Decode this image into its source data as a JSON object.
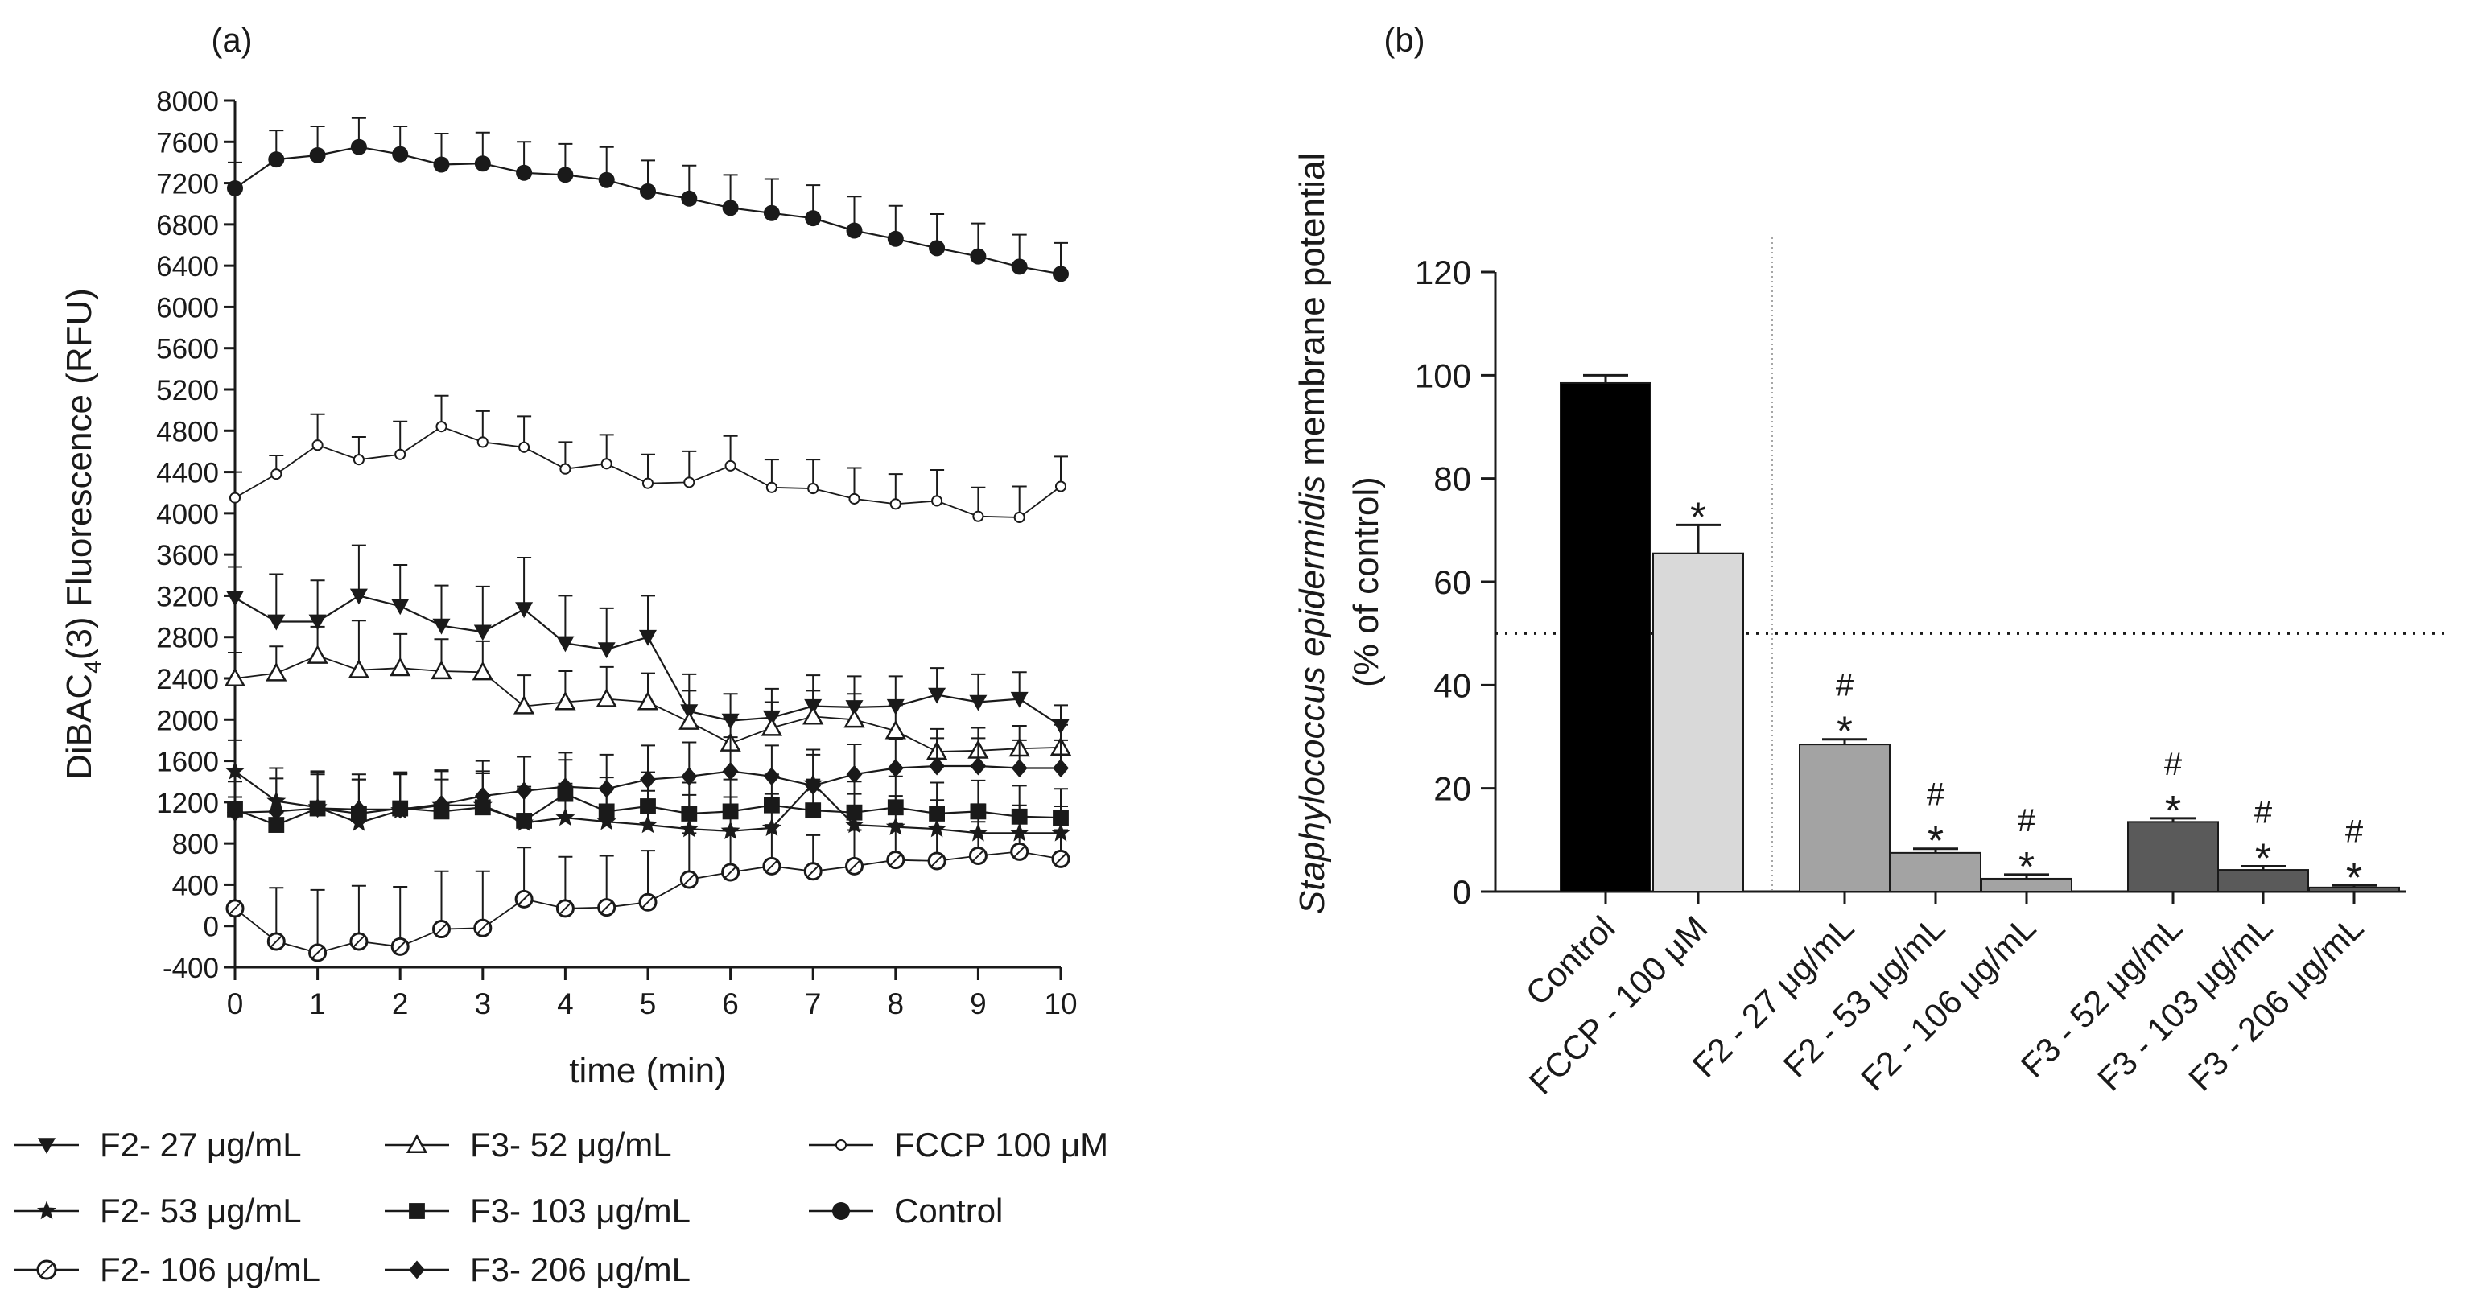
{
  "colors": {
    "ink": "#1a1a1a",
    "control_bar": "#000000",
    "fccp_bar": "#d9d9d9",
    "f2_bar": "#a3a3a3",
    "f3_bar": "#5a5a5a"
  },
  "chart_data": [
    {
      "panel_label": "(a)",
      "type": "line",
      "title": "",
      "xlabel": "time (min)",
      "ylabel_parts": {
        "pre": "DiBAC",
        "sub": "4",
        "post": "(3) Fluorescence  (RFU)"
      },
      "xlim": [
        0,
        10
      ],
      "ylim": [
        -400,
        8000
      ],
      "xticks": [
        0,
        1,
        2,
        3,
        4,
        5,
        6,
        7,
        8,
        9,
        10
      ],
      "xtick_labels": [
        "0",
        "1",
        "2",
        "3",
        "4",
        "5",
        "6",
        "7",
        "8",
        "9",
        "10"
      ],
      "yticks": [
        -400,
        0,
        400,
        800,
        1200,
        1600,
        2000,
        2400,
        2800,
        3200,
        3600,
        4000,
        4400,
        4800,
        5200,
        5600,
        6000,
        6400,
        6800,
        7200,
        7600,
        8000
      ],
      "ytick_labels": [
        "-400",
        "0",
        "400",
        "800",
        "1200",
        "1600",
        "2000",
        "2400",
        "2800",
        "3200",
        "3600",
        "4000",
        "4400",
        "4800",
        "5200",
        "5600",
        "6000",
        "6400",
        "6800",
        "7200",
        "7600",
        "8000"
      ],
      "x": [
        0,
        0.5,
        1,
        1.5,
        2,
        2.5,
        3,
        3.5,
        4,
        4.5,
        5,
        5.5,
        6,
        6.5,
        7,
        7.5,
        8,
        8.5,
        9,
        9.5,
        10
      ],
      "series": [
        {
          "name": "Control",
          "marker": "filled-circle",
          "color": "#1a1a1a",
          "values": [
            7150,
            7430,
            7470,
            7550,
            7480,
            7380,
            7390,
            7300,
            7280,
            7230,
            7120,
            7050,
            6960,
            6910,
            6860,
            6740,
            6660,
            6570,
            6490,
            6390,
            6320
          ],
          "errors": [
            250,
            280,
            280,
            280,
            270,
            300,
            300,
            300,
            300,
            320,
            300,
            320,
            320,
            330,
            320,
            330,
            320,
            330,
            320,
            310,
            300
          ]
        },
        {
          "name": "FCCP 100 μM",
          "marker": "open-small",
          "color": "#1a1a1a",
          "values": [
            4150,
            4380,
            4660,
            4520,
            4570,
            4840,
            4690,
            4640,
            4430,
            4480,
            4290,
            4300,
            4460,
            4250,
            4240,
            4140,
            4090,
            4120,
            3970,
            3960,
            4260
          ],
          "errors": [
            250,
            180,
            300,
            220,
            320,
            300,
            300,
            300,
            260,
            280,
            280,
            300,
            290,
            270,
            280,
            300,
            290,
            300,
            280,
            300,
            290
          ]
        },
        {
          "name": "F2- 27 μg/mL",
          "marker": "filled-triangle-down",
          "color": "#1a1a1a",
          "values": [
            3180,
            2950,
            2950,
            3200,
            3100,
            2910,
            2850,
            3070,
            2740,
            2680,
            2800,
            2080,
            1990,
            2020,
            2130,
            2120,
            2130,
            2240,
            2170,
            2200,
            1940
          ],
          "errors": [
            300,
            460,
            400,
            490,
            400,
            390,
            440,
            500,
            460,
            400,
            400,
            360,
            260,
            280,
            300,
            300,
            290,
            260,
            270,
            260,
            200
          ]
        },
        {
          "name": "F3- 52 μg/mL",
          "marker": "open-triangle-up",
          "color": "#1a1a1a",
          "values": [
            2400,
            2450,
            2620,
            2480,
            2500,
            2470,
            2460,
            2130,
            2170,
            2200,
            2170,
            1980,
            1770,
            1920,
            2030,
            2000,
            1890,
            1690,
            1700,
            1720,
            1730
          ],
          "errors": [
            250,
            260,
            280,
            480,
            330,
            310,
            300,
            300,
            300,
            310,
            280,
            300,
            250,
            250,
            250,
            250,
            250,
            220,
            220,
            220,
            220
          ]
        },
        {
          "name": "F2- 53 μg/mL",
          "marker": "filled-star",
          "color": "#1a1a1a",
          "values": [
            1500,
            1210,
            1150,
            1000,
            1120,
            1170,
            1170,
            1000,
            1050,
            1010,
            980,
            940,
            920,
            950,
            1380,
            980,
            960,
            940,
            900,
            900,
            900
          ],
          "errors": [
            300,
            320,
            350,
            420,
            360,
            330,
            330,
            330,
            330,
            330,
            330,
            330,
            330,
            330,
            330,
            300,
            300,
            280,
            280,
            270,
            260
          ]
        },
        {
          "name": "F3- 103 μg/mL",
          "marker": "filled-square",
          "color": "#1a1a1a",
          "values": [
            1130,
            980,
            1140,
            1090,
            1140,
            1110,
            1150,
            1020,
            1280,
            1110,
            1160,
            1090,
            1110,
            1170,
            1120,
            1100,
            1150,
            1090,
            1110,
            1060,
            1050
          ],
          "errors": [
            120,
            120,
            350,
            330,
            350,
            310,
            330,
            330,
            330,
            330,
            330,
            300,
            310,
            300,
            300,
            300,
            300,
            300,
            300,
            300,
            280
          ]
        },
        {
          "name": "F3- 206 μg/mL",
          "marker": "filled-diamond",
          "color": "#1a1a1a",
          "values": [
            1100,
            1110,
            1140,
            1130,
            1130,
            1180,
            1260,
            1310,
            1350,
            1330,
            1420,
            1450,
            1500,
            1450,
            1360,
            1470,
            1530,
            1550,
            1550,
            1530,
            1530
          ],
          "errors": [
            300,
            320,
            330,
            340,
            340,
            330,
            340,
            330,
            330,
            330,
            330,
            330,
            330,
            300,
            300,
            290,
            280,
            270,
            270,
            270,
            270
          ]
        },
        {
          "name": "F2- 106 μg/mL",
          "marker": "open-circle-cross",
          "color": "#1a1a1a",
          "values": [
            170,
            -150,
            -260,
            -150,
            -200,
            -30,
            -20,
            260,
            170,
            180,
            230,
            450,
            520,
            580,
            530,
            580,
            640,
            630,
            680,
            720,
            650
          ],
          "errors": [
            0,
            520,
            610,
            540,
            580,
            560,
            550,
            500,
            500,
            500,
            500,
            450,
            420,
            400,
            350,
            350,
            350,
            330,
            330,
            300,
            280
          ]
        }
      ],
      "legend": {
        "placement": "below",
        "entries": [
          "F2- 27 μg/mL",
          "F3- 52 μg/mL",
          "FCCP 100 μM",
          "F2- 53 μg/mL",
          "F3- 103 μg/mL",
          "Control",
          "F2- 106 μg/mL",
          "F3- 206 μg/mL"
        ]
      }
    },
    {
      "panel_label": "(b)",
      "type": "bar",
      "title": "",
      "ylabel_line1_parts": {
        "italic": "Staphylococcus epidermidis",
        "rest": " membrane potential"
      },
      "ylabel_line2": "(% of control)",
      "ylim": [
        0,
        120
      ],
      "yticks": [
        0,
        20,
        40,
        60,
        80,
        100,
        120
      ],
      "ytick_labels": [
        "0",
        "20",
        "40",
        "60",
        "80",
        "100",
        "120"
      ],
      "reference_line": 50,
      "bars": [
        {
          "label": "Control",
          "value": 98.5,
          "error": 1.5,
          "group": "control",
          "marks": []
        },
        {
          "label": "FCCP - 100 μM",
          "value": 65.5,
          "error": 5.5,
          "group": "fccp",
          "marks": [
            "*"
          ]
        },
        {
          "label": "F2 - 27 μg/mL",
          "value": 28.5,
          "error": 1.0,
          "group": "f2",
          "marks": [
            "*",
            "#"
          ]
        },
        {
          "label": "F2 - 53 μg/mL",
          "value": 7.5,
          "error": 0.8,
          "group": "f2",
          "marks": [
            "*",
            "#"
          ]
        },
        {
          "label": "F2 - 106 μg/mL",
          "value": 2.5,
          "error": 0.8,
          "group": "f2",
          "marks": [
            "*",
            "#"
          ]
        },
        {
          "label": "F3 - 52 μg/mL",
          "value": 13.5,
          "error": 0.7,
          "group": "f3",
          "marks": [
            "*",
            "#"
          ]
        },
        {
          "label": "F3 - 103 μg/mL",
          "value": 4.2,
          "error": 0.7,
          "group": "f3",
          "marks": [
            "*",
            "#"
          ]
        },
        {
          "label": "F3 - 206 μg/mL",
          "value": 0.8,
          "error": 0.4,
          "group": "f3",
          "marks": [
            "*",
            "#"
          ]
        }
      ]
    }
  ]
}
